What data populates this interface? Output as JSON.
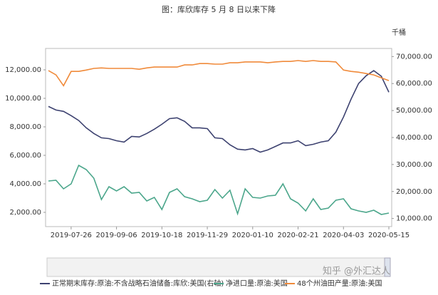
{
  "chart_data": {
    "type": "line",
    "title": "图：库欣库存 5 月 8 日以来下降",
    "y2_label": "千桶",
    "watermark": "知乎 @外汇达人",
    "categories": [
      null,
      null,
      null,
      "2019-07-26",
      null,
      null,
      null,
      null,
      null,
      "2019-09-06",
      null,
      null,
      null,
      null,
      null,
      "2019-10-18",
      null,
      null,
      null,
      null,
      null,
      "2019-11-29",
      null,
      null,
      null,
      null,
      null,
      "2020-01-10",
      null,
      null,
      null,
      null,
      null,
      "2020-02-21",
      null,
      null,
      null,
      null,
      null,
      "2020-04-03",
      null,
      null,
      null,
      null,
      null,
      "2020-05-15"
    ],
    "ylim": [
      1000,
      13500
    ],
    "yticks": [
      {
        "value": 2000,
        "label": "2,000.00"
      },
      {
        "value": 4000,
        "label": "4,000.00"
      },
      {
        "value": 6000,
        "label": "6,000.00"
      },
      {
        "value": 8000,
        "label": "8,000.00"
      },
      {
        "value": 10000,
        "label": "10,000.00"
      },
      {
        "value": 12000,
        "label": "12,000.00"
      }
    ],
    "y2lim": [
      7000,
      73000
    ],
    "y2ticks": [
      {
        "value": 10000,
        "label": "10,000.00"
      },
      {
        "value": 20000,
        "label": "20,000.00"
      },
      {
        "value": 30000,
        "label": "30,000.00"
      },
      {
        "value": 40000,
        "label": "40,000.00"
      },
      {
        "value": 50000,
        "label": "50,000.00"
      },
      {
        "value": 60000,
        "label": "60,000.00"
      },
      {
        "value": 70000,
        "label": "70,000.00"
      }
    ],
    "legend": "bottom",
    "series": [
      {
        "name": "正常期末库存:原油:不含战略石油储备:库欣:美国(右轴)",
        "color": "#3d4270",
        "axis": "y2",
        "values": [
          51500,
          50200,
          49700,
          48100,
          46300,
          43600,
          41500,
          39900,
          39600,
          38800,
          38300,
          40400,
          40200,
          41500,
          43100,
          44900,
          47000,
          47300,
          46000,
          43600,
          43600,
          43300,
          39900,
          39600,
          37300,
          35700,
          35400,
          35900,
          34600,
          35400,
          36700,
          38000,
          38000,
          38800,
          37000,
          37500,
          38300,
          38800,
          42000,
          47600,
          54200,
          60000,
          62900,
          64800,
          62700,
          56800
        ]
      },
      {
        "name": "净进口量:原油:美国",
        "color": "#4ba68b",
        "values": [
          4200,
          4250,
          3650,
          4000,
          5300,
          5000,
          4400,
          2900,
          3800,
          3500,
          3800,
          3350,
          3400,
          2800,
          3050,
          2200,
          3400,
          3650,
          3100,
          2950,
          2750,
          2850,
          3600,
          3000,
          3550,
          1900,
          3650,
          3050,
          3000,
          3150,
          3200,
          4000,
          2950,
          2650,
          2100,
          2950,
          2200,
          2300,
          2850,
          2950,
          2250,
          2100,
          2000,
          2150,
          1850,
          1950
        ]
      },
      {
        "name": "48个州油田产量:原油:美国",
        "color": "#f08a3a",
        "axis": "y2",
        "values": [
          64800,
          63200,
          59200,
          64500,
          64500,
          65000,
          65600,
          65800,
          65600,
          65600,
          65600,
          65600,
          65300,
          65800,
          66100,
          66100,
          66100,
          66100,
          66900,
          66900,
          67400,
          67400,
          67200,
          67200,
          67700,
          67700,
          68000,
          68000,
          68000,
          67700,
          68000,
          68200,
          68200,
          68500,
          68200,
          68500,
          68200,
          68200,
          68000,
          65000,
          64500,
          64200,
          63700,
          63200,
          62100,
          61100
        ]
      }
    ]
  }
}
